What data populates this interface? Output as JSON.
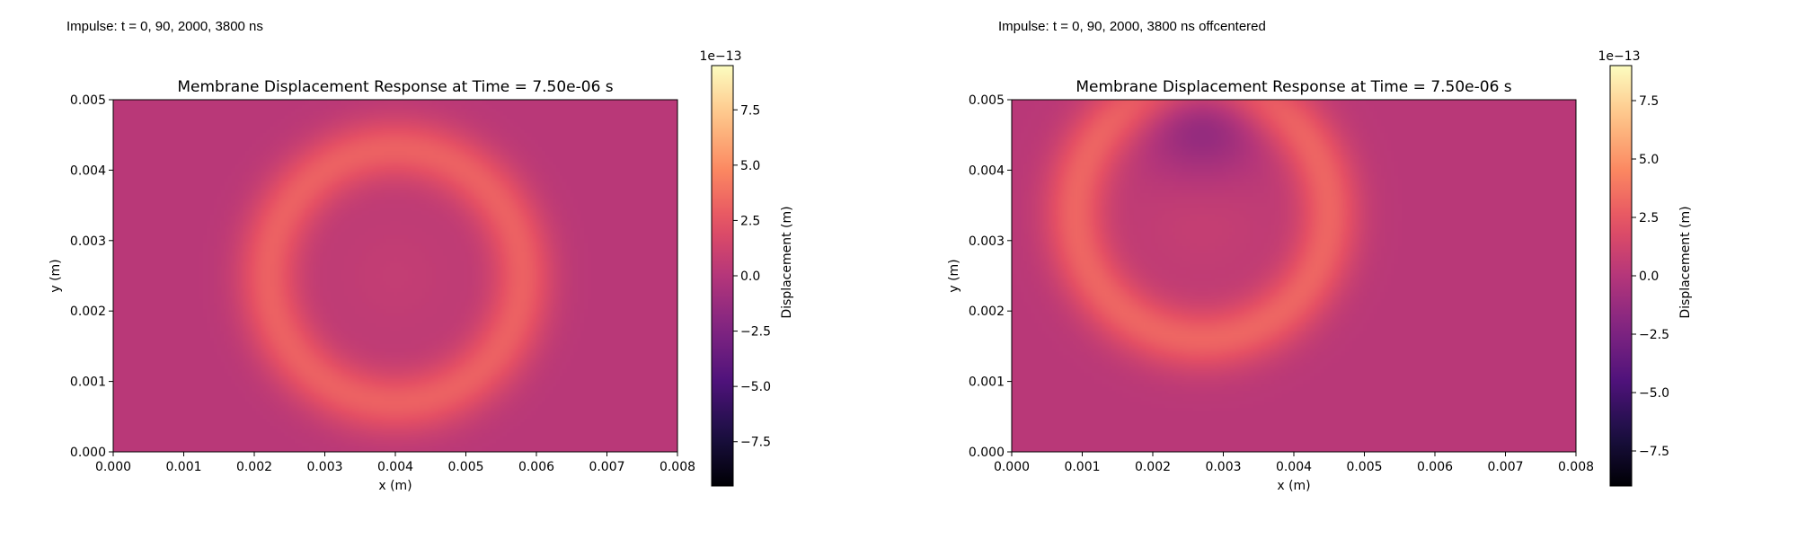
{
  "figure": {
    "left_caption": "Impulse: t = 0, 90, 2000, 3800 ns",
    "right_caption": "Impulse: t = 0, 90, 2000, 3800 ns offcentered"
  },
  "chart_data": [
    {
      "type": "heatmap",
      "title": "Membrane Displacement Response at Time = 7.50e-06 s",
      "xlabel": "x (m)",
      "ylabel": "y (m)",
      "xlim": [
        0.0,
        0.008
      ],
      "ylim": [
        0.0,
        0.005
      ],
      "xticks": [
        "0.000",
        "0.001",
        "0.002",
        "0.003",
        "0.004",
        "0.005",
        "0.006",
        "0.007",
        "0.008"
      ],
      "yticks": [
        "0.000",
        "0.001",
        "0.002",
        "0.003",
        "0.004",
        "0.005"
      ],
      "colormap": "magma",
      "colorbar": {
        "label": "Displacement (m)",
        "exponent": "1e−13",
        "range": [
          -9.5,
          9.5
        ],
        "ticks": [
          "−7.5",
          "−5.0",
          "−2.5",
          "0.0",
          "2.5",
          "5.0",
          "7.5"
        ],
        "tick_values": [
          -7.5,
          -5.0,
          -2.5,
          0.0,
          2.5,
          5.0,
          7.5
        ]
      },
      "field": {
        "baseline": 0.2,
        "features": [
          {
            "kind": "ring",
            "center": [
              0.004,
              0.0025
            ],
            "radius": 0.0018,
            "width": 0.00045,
            "amplitude": 2.9
          },
          {
            "kind": "blob",
            "center": [
              0.004,
              0.0025
            ],
            "radius": 0.0011,
            "amplitude": 0.5
          }
        ]
      }
    },
    {
      "type": "heatmap",
      "title": "Membrane Displacement Response at Time = 7.50e-06 s",
      "xlabel": "x (m)",
      "ylabel": "y (m)",
      "xlim": [
        0.0,
        0.008
      ],
      "ylim": [
        0.0,
        0.005
      ],
      "xticks": [
        "0.000",
        "0.001",
        "0.002",
        "0.003",
        "0.004",
        "0.005",
        "0.006",
        "0.007",
        "0.008"
      ],
      "yticks": [
        "0.000",
        "0.001",
        "0.002",
        "0.003",
        "0.004",
        "0.005"
      ],
      "colormap": "magma",
      "colorbar": {
        "label": "Displacement (m)",
        "exponent": "1e−13",
        "range": [
          -9.0,
          9.0
        ],
        "ticks": [
          "−7.5",
          "−5.0",
          "−2.5",
          "0.0",
          "2.5",
          "5.0",
          "7.5"
        ],
        "tick_values": [
          -7.5,
          -5.0,
          -2.5,
          0.0,
          2.5,
          5.0,
          7.5
        ]
      },
      "field": {
        "baseline": 0.2,
        "features": [
          {
            "kind": "ring",
            "center": [
              0.0027,
              0.0034
            ],
            "radius": 0.0018,
            "width": 0.00045,
            "amplitude": 2.9
          },
          {
            "kind": "blob",
            "center": [
              0.0027,
              0.0034
            ],
            "radius": 0.0011,
            "amplitude": 0.6
          },
          {
            "kind": "blob",
            "center": [
              0.0027,
              0.0047
            ],
            "radius": 0.0008,
            "amplitude": -2.2
          }
        ]
      }
    }
  ]
}
